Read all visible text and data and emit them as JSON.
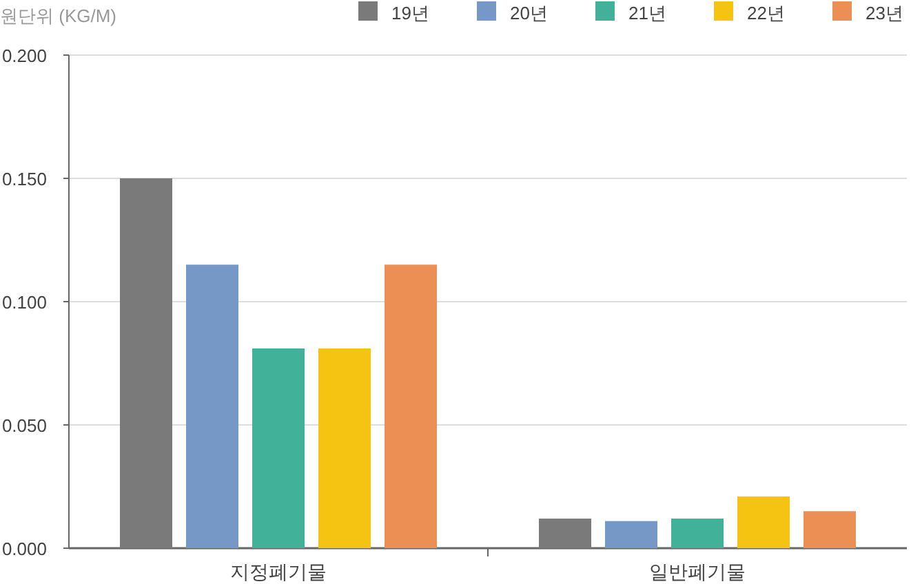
{
  "chart_data": {
    "type": "bar",
    "ylabel": "원단위 (KG/M)",
    "categories": [
      "지정폐기물",
      "일반폐기물"
    ],
    "series": [
      {
        "name": "19년",
        "color": "#7a7a7a",
        "values": [
          0.15,
          0.012
        ]
      },
      {
        "name": "20년",
        "color": "#7698c6",
        "values": [
          0.115,
          0.011
        ]
      },
      {
        "name": "21년",
        "color": "#42b199",
        "values": [
          0.081,
          0.012
        ]
      },
      {
        "name": "22년",
        "color": "#f5c312",
        "values": [
          0.081,
          0.021
        ]
      },
      {
        "name": "23년",
        "color": "#eb8f54",
        "values": [
          0.115,
          0.015
        ]
      }
    ],
    "ylim": [
      0,
      0.2
    ],
    "yticks": [
      {
        "value": 0,
        "label": "0.000"
      },
      {
        "value": 0.05,
        "label": "0.050"
      },
      {
        "value": 0.1,
        "label": "0.100"
      },
      {
        "value": 0.15,
        "label": "0.150"
      },
      {
        "value": 0.2,
        "label": "0.200"
      }
    ],
    "grid": "y",
    "legend": "top right"
  }
}
